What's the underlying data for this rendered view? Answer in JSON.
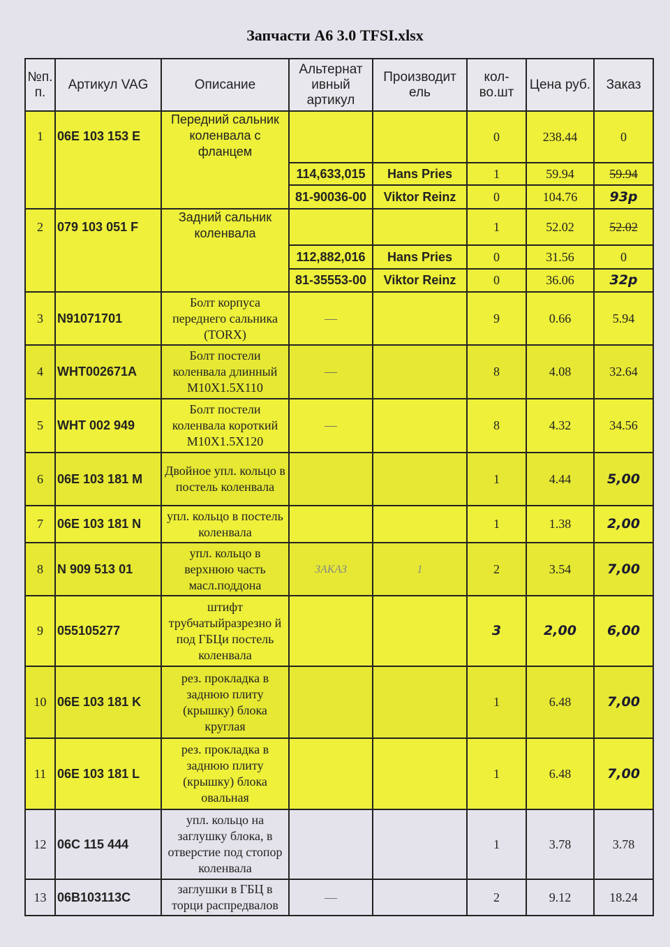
{
  "title": "Запчасти А6 3.0 TFSI.xlsx",
  "headers": [
    "№п. п.",
    "Артикул VAG",
    "Описание",
    "Альтернат ивный артикул",
    "Производит ель",
    "кол- во.шт",
    "Цена руб.",
    "Заказ"
  ],
  "rows": [
    {
      "n": "1",
      "art": "06E 103 153 E",
      "desc": "Передний сальник коленвала с фланцем",
      "qty": "0",
      "price": "238.44",
      "order": "0",
      "alts": [
        {
          "alt": "114,633,015",
          "maker": "Hans Pries",
          "qty": "1",
          "price": "59.94",
          "order": "59.94",
          "order_struck": true
        },
        {
          "alt": "81-90036-00",
          "maker": "Viktor Reinz",
          "qty": "0",
          "price": "104.76",
          "order": "93р"
        }
      ]
    },
    {
      "n": "2",
      "art": "079 103 051 F",
      "desc": "Задний сальник коленвала",
      "qty": "1",
      "price": "52.02",
      "order": "52.02",
      "alts": [
        {
          "alt": "112,882,016",
          "maker": "Hans Pries",
          "qty": "0",
          "price": "31.56",
          "order": "0"
        },
        {
          "alt": "81-35553-00",
          "maker": "Viktor Reinz",
          "qty": "0",
          "price": "36.06",
          "order": "32р"
        }
      ]
    },
    {
      "n": "3",
      "art": "N91071701",
      "desc": "Болт корпуса переднего сальника (TORX)",
      "alt": "—",
      "qty": "9",
      "price": "0.66",
      "order": "5.94"
    },
    {
      "n": "4",
      "art": "WHT002671A",
      "desc": "Болт постели коленвала длинный M10X1.5X110",
      "alt": "—",
      "qty": "8",
      "price": "4.08",
      "order": "32.64"
    },
    {
      "n": "5",
      "art": "WHT 002 949",
      "desc": "Болт постели коленвала короткий M10X1.5X120",
      "alt": "—",
      "qty": "8",
      "price": "4.32",
      "order": "34.56"
    },
    {
      "n": "6",
      "art": "06E 103 181 M",
      "desc": "Двойное упл. кольцо в постель коленвала",
      "qty": "1",
      "price": "4.44",
      "order": "5,00"
    },
    {
      "n": "7",
      "art": "06E 103 181 N",
      "desc": "упл. кольцо в постель коленвала",
      "qty": "1",
      "price": "1.38",
      "order": "2,00"
    },
    {
      "n": "8",
      "art": "N 909 513 01",
      "desc": "упл. кольцо в верхнюю часть масл.поддона",
      "alt": "ЗАКАЗ",
      "maker": "1",
      "qty": "2",
      "price": "3.54",
      "order": "7,00"
    },
    {
      "n": "9",
      "art": "055105277",
      "desc": "штифт трубчатыйразрезно й под ГБЦи постель коленвала",
      "qty": "3",
      "price": "2,00",
      "order": "6,00"
    },
    {
      "n": "10",
      "art": "06E 103 181 K",
      "desc": "рез. прокладка в заднюю плиту (крышку) блока круглая",
      "qty": "1",
      "price": "6.48",
      "order": "7,00"
    },
    {
      "n": "11",
      "art": "06E 103 181 L",
      "desc": "рез. прокладка в заднюю плиту (крышку) блока овальная",
      "qty": "1",
      "price": "6.48",
      "order": "7,00"
    },
    {
      "n": "12",
      "art": "06C 115 444",
      "desc": "упл. кольцо на заглушку блока, в отверстие под стопор коленвала",
      "qty": "1",
      "price": "3.78",
      "order": "3.78"
    },
    {
      "n": "13",
      "art": "06B103113C",
      "desc": "заглушки в ГБЦ в торци распредвалов",
      "alt": "—",
      "qty": "2",
      "price": "9.12",
      "order": "18.24"
    }
  ],
  "colors": {
    "highlight": "#eef03a",
    "paper": "#e4e2ea",
    "ink": "#222222"
  }
}
